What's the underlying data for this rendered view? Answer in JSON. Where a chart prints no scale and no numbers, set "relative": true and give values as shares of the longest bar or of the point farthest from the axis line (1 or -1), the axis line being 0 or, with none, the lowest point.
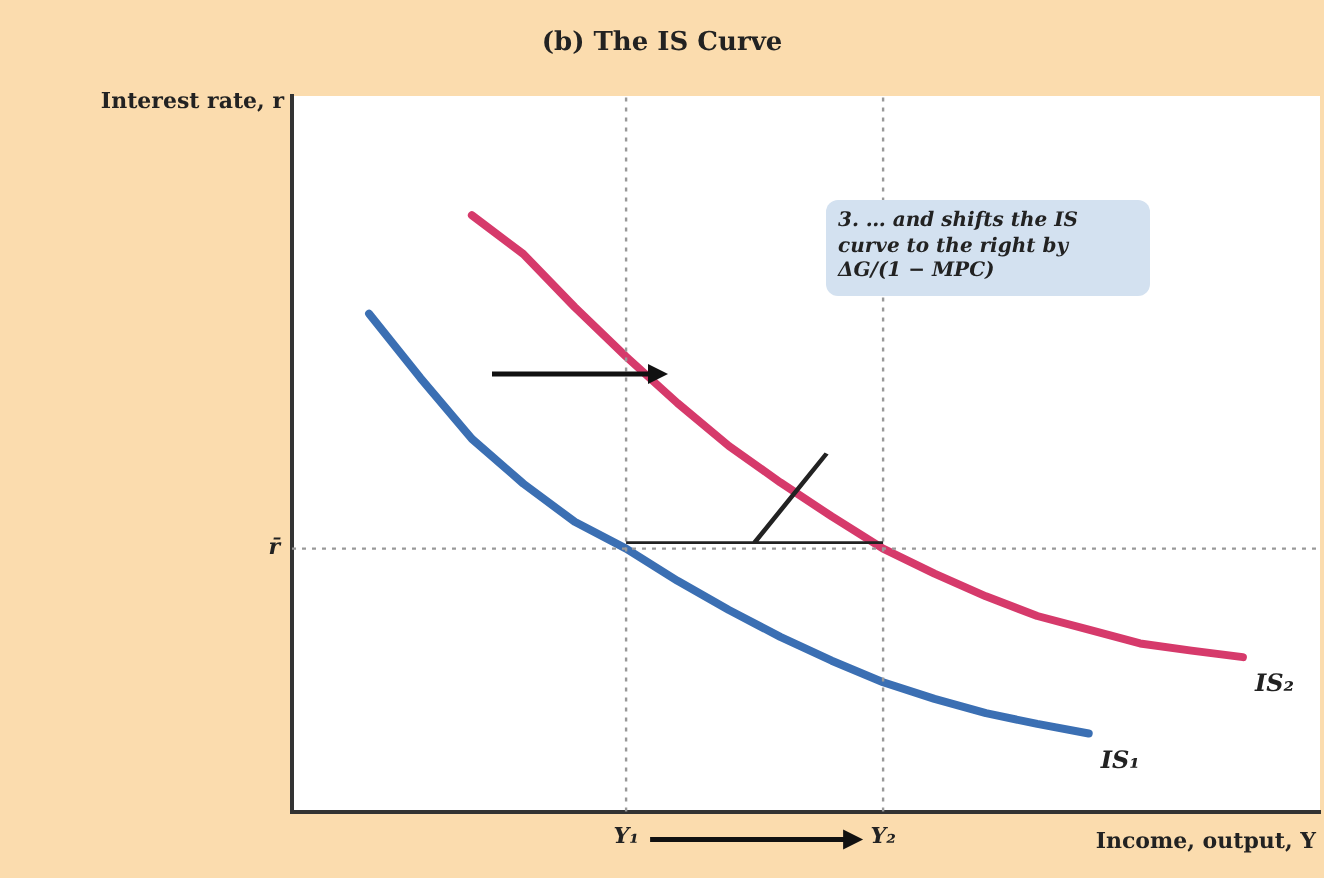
{
  "chart_data": {
    "type": "line",
    "title": "(b) The IS Curve",
    "xlabel": "Income, output, Y",
    "ylabel": "Interest rate, r",
    "relative": true,
    "tick_labels": "x",
    "grid": "x",
    "legend": false,
    "marker": "none",
    "line_style": "solid",
    "categories": [
      null,
      null,
      null,
      null,
      null,
      null,
      "Y₁",
      null,
      null,
      null,
      null,
      "Y₂",
      null,
      null,
      null,
      null,
      null,
      null,
      null,
      null
    ],
    "series": [
      {
        "name": "IS₁",
        "color": "#3b6fb3",
        "values": [
          null,
          0.835,
          0.727,
          0.625,
          0.55,
          0.486,
          0.441,
          0.387,
          0.338,
          0.293,
          0.253,
          0.217,
          0.189,
          0.165,
          0.147,
          0.131,
          null,
          null,
          null,
          null
        ]
      },
      {
        "name": "IS₂",
        "color": "#d63a6b",
        "values": [
          null,
          null,
          null,
          1.0,
          0.935,
          0.846,
          0.763,
          0.685,
          0.613,
          0.552,
          0.495,
          0.441,
          0.399,
          0.361,
          0.328,
          0.305,
          0.282,
          0.27,
          0.259,
          null
        ]
      }
    ],
    "ref_lines": [
      {
        "axis": "y",
        "value": 0.441,
        "label": "r̄",
        "line_style": "dotted",
        "color": "#999999"
      }
    ],
    "annotations": [
      "3. … and shifts the IS curve to the right by ΔG/(1 − MPC)"
    ]
  }
}
